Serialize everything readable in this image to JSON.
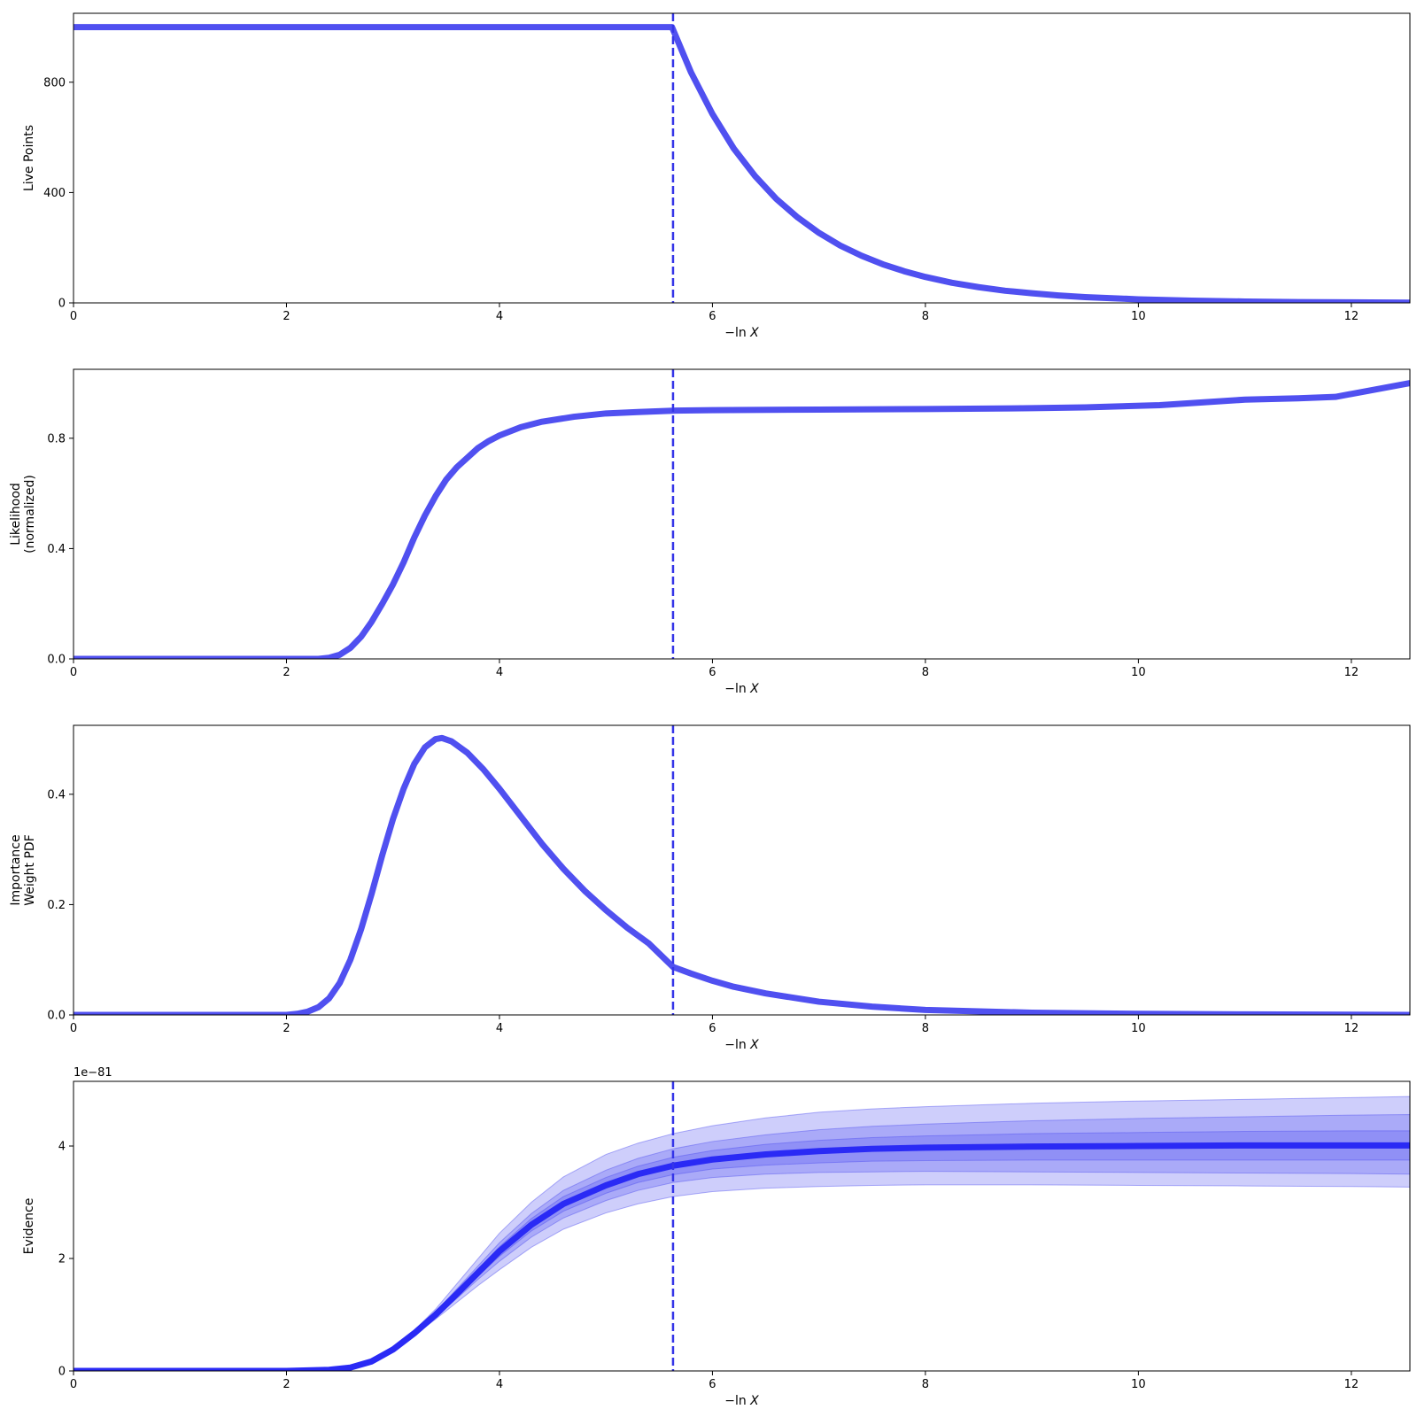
{
  "chart_data": [
    {
      "type": "line",
      "ylabel": [
        "Live Points"
      ],
      "xlabel": "−ln X",
      "xlim": [
        0,
        12.55
      ],
      "ylim": [
        0,
        1050
      ],
      "xticks": [
        0,
        2,
        4,
        6,
        8,
        10,
        12
      ],
      "yticks": [
        0,
        400,
        800
      ],
      "ytick_labels": [
        "0",
        "400",
        "800"
      ],
      "vline_x": 5.63,
      "line_color": "#5050f0",
      "series": [
        {
          "values": [
            [
              0,
              1000
            ],
            [
              1,
              1000
            ],
            [
              2,
              1000
            ],
            [
              3,
              1000
            ],
            [
              4,
              1000
            ],
            [
              5,
              1000
            ],
            [
              5.62,
              1000
            ],
            [
              5.8,
              835
            ],
            [
              6.0,
              685
            ],
            [
              6.2,
              560
            ],
            [
              6.4,
              460
            ],
            [
              6.6,
              377
            ],
            [
              6.8,
              310
            ],
            [
              7.0,
              254
            ],
            [
              7.2,
              208
            ],
            [
              7.4,
              171
            ],
            [
              7.6,
              140
            ],
            [
              7.8,
              115
            ],
            [
              8.0,
              94
            ],
            [
              8.25,
              73
            ],
            [
              8.5,
              57
            ],
            [
              8.75,
              44
            ],
            [
              9.0,
              35
            ],
            [
              9.25,
              27
            ],
            [
              9.5,
              21
            ],
            [
              10.0,
              13
            ],
            [
              10.5,
              8
            ],
            [
              11.0,
              5
            ],
            [
              11.5,
              3
            ],
            [
              12.0,
              2
            ],
            [
              12.55,
              1
            ]
          ]
        }
      ]
    },
    {
      "type": "line",
      "ylabel": [
        "Likelihood",
        "(normalized)"
      ],
      "xlabel": "−ln X",
      "xlim": [
        0,
        12.55
      ],
      "ylim": [
        0,
        1.05
      ],
      "xticks": [
        0,
        2,
        4,
        6,
        8,
        10,
        12
      ],
      "yticks": [
        0,
        0.4,
        0.8
      ],
      "ytick_labels": [
        "0.0",
        "0.4",
        "0.8"
      ],
      "vline_x": 5.63,
      "line_color": "#5050f0",
      "series": [
        {
          "values": [
            [
              0,
              0.0
            ],
            [
              2.0,
              0.0
            ],
            [
              2.3,
              0.0
            ],
            [
              2.4,
              0.004
            ],
            [
              2.5,
              0.015
            ],
            [
              2.6,
              0.04
            ],
            [
              2.7,
              0.08
            ],
            [
              2.8,
              0.135
            ],
            [
              2.9,
              0.2
            ],
            [
              3.0,
              0.27
            ],
            [
              3.1,
              0.35
            ],
            [
              3.2,
              0.44
            ],
            [
              3.3,
              0.52
            ],
            [
              3.4,
              0.59
            ],
            [
              3.5,
              0.65
            ],
            [
              3.6,
              0.695
            ],
            [
              3.7,
              0.73
            ],
            [
              3.8,
              0.765
            ],
            [
              3.9,
              0.79
            ],
            [
              4.0,
              0.81
            ],
            [
              4.2,
              0.84
            ],
            [
              4.4,
              0.86
            ],
            [
              4.7,
              0.878
            ],
            [
              5.0,
              0.89
            ],
            [
              5.3,
              0.895
            ],
            [
              5.63,
              0.9
            ],
            [
              6.0,
              0.902
            ],
            [
              7.0,
              0.904
            ],
            [
              8.0,
              0.906
            ],
            [
              9.0,
              0.909
            ],
            [
              9.5,
              0.912
            ],
            [
              10.2,
              0.92
            ],
            [
              10.6,
              0.93
            ],
            [
              11.0,
              0.94
            ],
            [
              11.5,
              0.945
            ],
            [
              11.85,
              0.95
            ],
            [
              12.55,
              1.0
            ]
          ]
        }
      ]
    },
    {
      "type": "line",
      "ylabel": [
        "Importance",
        "Weight PDF"
      ],
      "xlabel": "−ln X",
      "xlim": [
        0,
        12.55
      ],
      "ylim": [
        0,
        0.525
      ],
      "xticks": [
        0,
        2,
        4,
        6,
        8,
        10,
        12
      ],
      "yticks": [
        0,
        0.2,
        0.4
      ],
      "ytick_labels": [
        "0.0",
        "0.2",
        "0.4"
      ],
      "vline_x": 5.63,
      "line_color": "#5050f0",
      "series": [
        {
          "values": [
            [
              0,
              0.0
            ],
            [
              2.0,
              0.0
            ],
            [
              2.1,
              0.002
            ],
            [
              2.2,
              0.006
            ],
            [
              2.3,
              0.014
            ],
            [
              2.4,
              0.03
            ],
            [
              2.5,
              0.058
            ],
            [
              2.6,
              0.1
            ],
            [
              2.7,
              0.155
            ],
            [
              2.8,
              0.22
            ],
            [
              2.9,
              0.29
            ],
            [
              3.0,
              0.355
            ],
            [
              3.1,
              0.41
            ],
            [
              3.2,
              0.455
            ],
            [
              3.3,
              0.485
            ],
            [
              3.4,
              0.5
            ],
            [
              3.46,
              0.502
            ],
            [
              3.55,
              0.496
            ],
            [
              3.7,
              0.475
            ],
            [
              3.85,
              0.445
            ],
            [
              4.0,
              0.41
            ],
            [
              4.2,
              0.36
            ],
            [
              4.4,
              0.31
            ],
            [
              4.6,
              0.265
            ],
            [
              4.8,
              0.225
            ],
            [
              5.0,
              0.19
            ],
            [
              5.2,
              0.158
            ],
            [
              5.4,
              0.13
            ],
            [
              5.63,
              0.087
            ],
            [
              5.8,
              0.075
            ],
            [
              6.0,
              0.062
            ],
            [
              6.2,
              0.051
            ],
            [
              6.5,
              0.039
            ],
            [
              7.0,
              0.024
            ],
            [
              7.5,
              0.015
            ],
            [
              8.0,
              0.009
            ],
            [
              9.0,
              0.004
            ],
            [
              10.0,
              0.002
            ],
            [
              11.0,
              0.001
            ],
            [
              12.55,
              0.0
            ]
          ]
        }
      ]
    },
    {
      "type": "area",
      "ylabel": [
        "Evidence"
      ],
      "xlabel": "−ln X",
      "y_multiplier_label": "1e−81",
      "xlim": [
        0,
        12.55
      ],
      "ylim": [
        0,
        5.15
      ],
      "xticks": [
        0,
        2,
        4,
        6,
        8,
        10,
        12
      ],
      "yticks": [
        0,
        2,
        4
      ],
      "ytick_labels": [
        "0",
        "2",
        "4"
      ],
      "vline_x": 5.63,
      "line_color": "#2a2af5",
      "band_color": "#5050f0",
      "band_opacity": 0.28,
      "x": [
        0,
        2.0,
        2.4,
        2.6,
        2.8,
        3.0,
        3.2,
        3.4,
        3.6,
        3.8,
        4.0,
        4.3,
        4.6,
        5.0,
        5.3,
        5.63,
        6.0,
        6.5,
        7.0,
        7.5,
        8.0,
        9.0,
        10.0,
        11.0,
        12.0,
        12.55
      ],
      "series": [
        {
          "values": [
            0,
            0,
            0.02,
            0.06,
            0.17,
            0.38,
            0.67,
            1.0,
            1.37,
            1.75,
            2.13,
            2.6,
            2.97,
            3.3,
            3.5,
            3.65,
            3.76,
            3.85,
            3.91,
            3.95,
            3.97,
            3.99,
            4.0,
            4.01,
            4.01,
            4.01
          ]
        }
      ],
      "bands": [
        {
          "lower": [
            0,
            0,
            0.02,
            0.06,
            0.16,
            0.36,
            0.63,
            0.92,
            1.22,
            1.52,
            1.8,
            2.2,
            2.52,
            2.81,
            2.97,
            3.1,
            3.19,
            3.25,
            3.28,
            3.3,
            3.31,
            3.31,
            3.3,
            3.29,
            3.28,
            3.27
          ],
          "upper": [
            0,
            0,
            0.02,
            0.06,
            0.18,
            0.4,
            0.72,
            1.1,
            1.55,
            2.0,
            2.45,
            3.0,
            3.45,
            3.85,
            4.05,
            4.22,
            4.36,
            4.5,
            4.6,
            4.66,
            4.7,
            4.76,
            4.8,
            4.83,
            4.86,
            4.88
          ]
        },
        {
          "lower": [
            0,
            0,
            0.02,
            0.06,
            0.165,
            0.37,
            0.65,
            0.96,
            1.29,
            1.63,
            1.95,
            2.38,
            2.72,
            3.03,
            3.21,
            3.35,
            3.44,
            3.5,
            3.53,
            3.54,
            3.55,
            3.54,
            3.53,
            3.52,
            3.51,
            3.5
          ],
          "upper": [
            0,
            0,
            0.02,
            0.06,
            0.175,
            0.39,
            0.7,
            1.05,
            1.46,
            1.87,
            2.28,
            2.8,
            3.21,
            3.57,
            3.78,
            3.95,
            4.08,
            4.2,
            4.29,
            4.35,
            4.39,
            4.45,
            4.49,
            4.52,
            4.55,
            4.56
          ]
        },
        {
          "lower": [
            0,
            0,
            0.02,
            0.06,
            0.168,
            0.375,
            0.66,
            0.98,
            1.33,
            1.69,
            2.04,
            2.49,
            2.84,
            3.16,
            3.35,
            3.49,
            3.59,
            3.66,
            3.7,
            3.73,
            3.74,
            3.75,
            3.75,
            3.75,
            3.75,
            3.75
          ],
          "upper": [
            0,
            0,
            0.02,
            0.06,
            0.172,
            0.385,
            0.68,
            1.02,
            1.41,
            1.81,
            2.21,
            2.71,
            3.1,
            3.44,
            3.64,
            3.8,
            3.92,
            4.03,
            4.1,
            4.15,
            4.18,
            4.22,
            4.24,
            4.26,
            4.27,
            4.27
          ]
        }
      ]
    }
  ]
}
